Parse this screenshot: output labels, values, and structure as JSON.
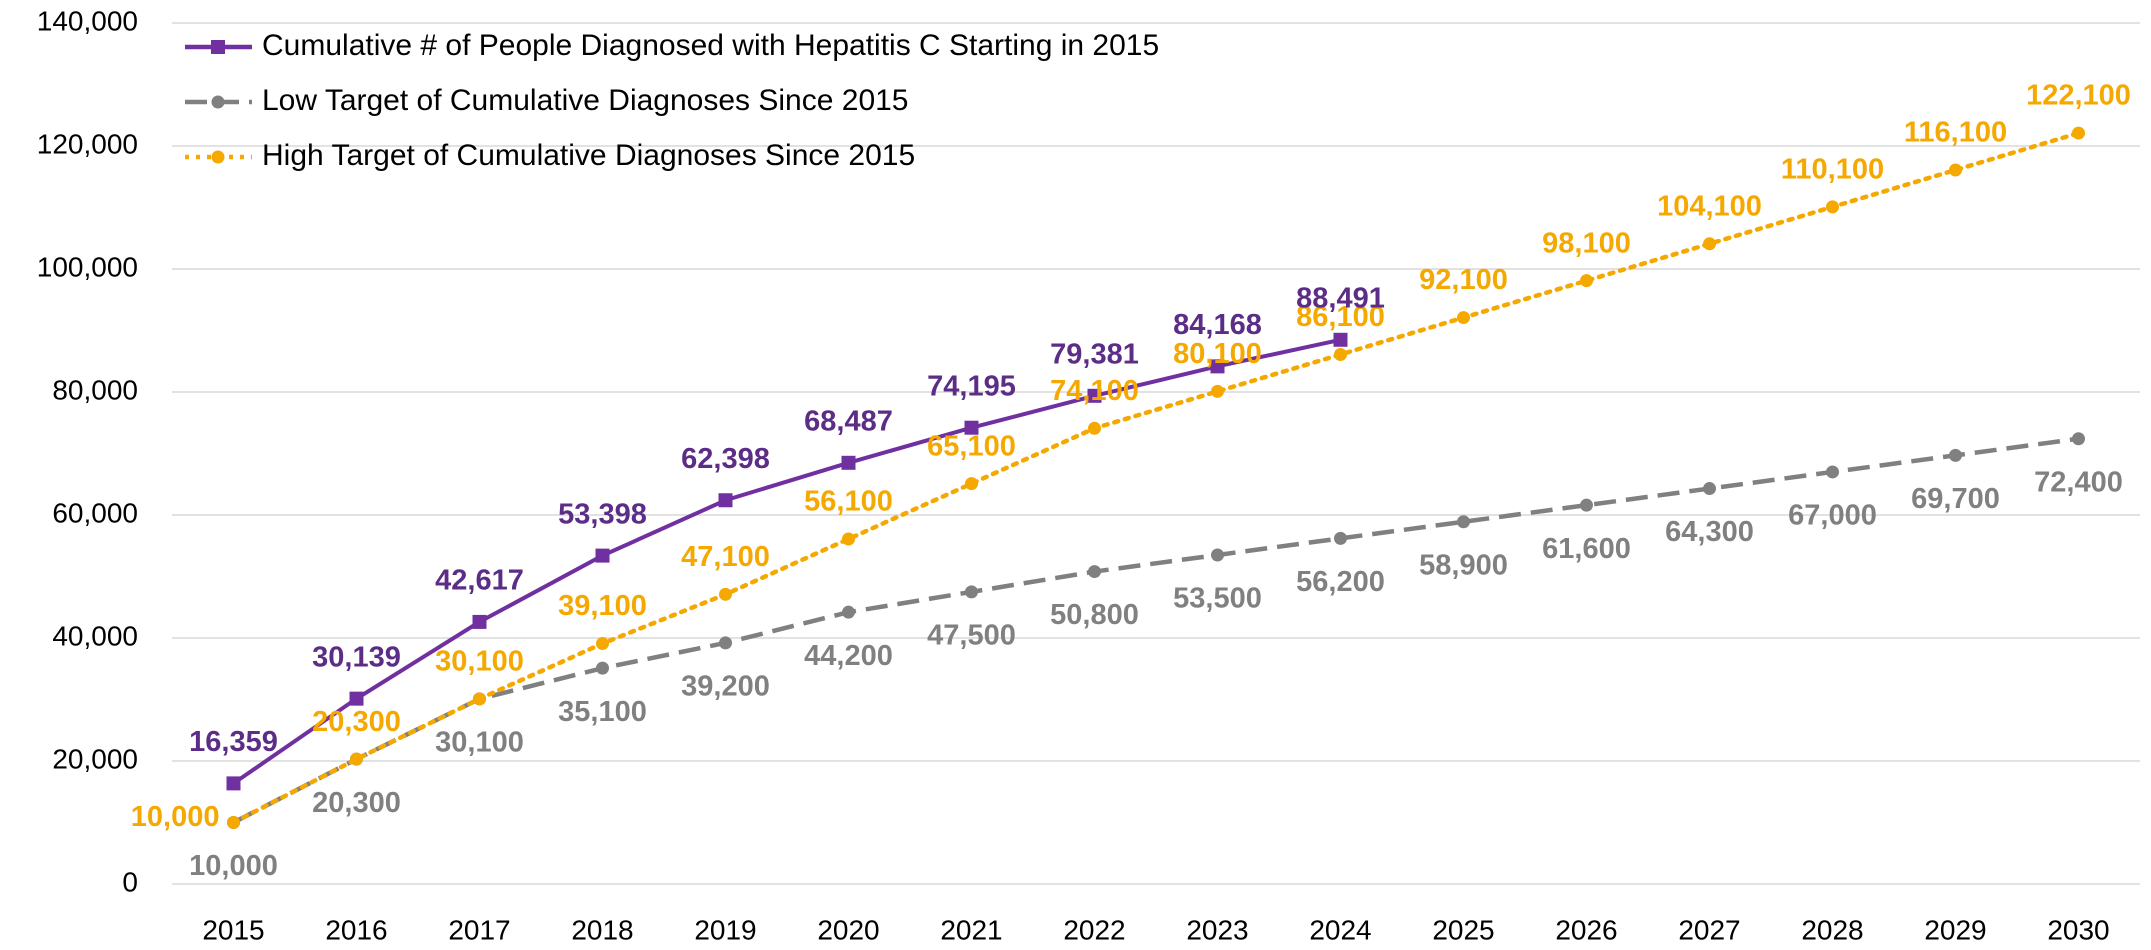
{
  "chart_data": {
    "type": "line",
    "categories": [
      "2015",
      "2016",
      "2017",
      "2018",
      "2019",
      "2020",
      "2021",
      "2022",
      "2023",
      "2024",
      "2025",
      "2026",
      "2027",
      "2028",
      "2029",
      "2030"
    ],
    "series": [
      {
        "name": "Cumulative # of People Diagnosed with Hepatitis C Starting in 2015",
        "color": "#7030a0",
        "style": "solid",
        "marker": "square",
        "values": [
          16359,
          30139,
          42617,
          53398,
          62398,
          68487,
          74195,
          79381,
          84168,
          88491,
          null,
          null,
          null,
          null,
          null,
          null
        ],
        "value_labels": [
          "16,359",
          "30,139",
          "42,617",
          "53,398",
          "62,398",
          "68,487",
          "74,195",
          "79,381",
          "84,168",
          "88,491",
          null,
          null,
          null,
          null,
          null,
          null
        ]
      },
      {
        "name": "Low Target of Cumulative Diagnoses Since 2015",
        "color": "#808080",
        "style": "dashed",
        "marker": "circle",
        "values": [
          10000,
          20300,
          30100,
          35100,
          39200,
          44200,
          47500,
          50800,
          53500,
          56200,
          58900,
          61600,
          64300,
          67000,
          69700,
          72400
        ],
        "value_labels": [
          "10,000",
          "20,300",
          "30,100",
          "35,100",
          "39,200",
          "44,200",
          "47,500",
          "50,800",
          "53,500",
          "56,200",
          "58,900",
          "61,600",
          "64,300",
          "67,000",
          "69,700",
          "72,400"
        ]
      },
      {
        "name": "High Target of Cumulative Diagnoses Since 2015",
        "color": "#f5a800",
        "style": "dotted",
        "marker": "circle",
        "values": [
          10000,
          20300,
          30100,
          39100,
          47100,
          56100,
          65100,
          74100,
          80100,
          86100,
          92100,
          98100,
          104100,
          110100,
          116100,
          122100
        ],
        "value_labels": [
          "10,000",
          "20,300",
          "30,100",
          "39,100",
          "47,100",
          "56,100",
          "65,100",
          "74,100",
          "80,100",
          "86,100",
          "92,100",
          "98,100",
          "104,100",
          "110,100",
          "116,100",
          "122,100"
        ]
      }
    ],
    "ylim": [
      0,
      140000
    ],
    "yticks": [
      0,
      {
        "value": 20000,
        "label": "20,000"
      },
      {
        "value": 40000,
        "label": "40,000"
      },
      {
        "value": 60000,
        "label": "60,000"
      },
      {
        "value": 80000,
        "label": "80,000"
      },
      {
        "value": 100000,
        "label": "100,000"
      },
      {
        "value": 120000,
        "label": "120,000"
      },
      {
        "value": 140000,
        "label": "140,000"
      }
    ],
    "grid": true,
    "legend": "top-left"
  }
}
